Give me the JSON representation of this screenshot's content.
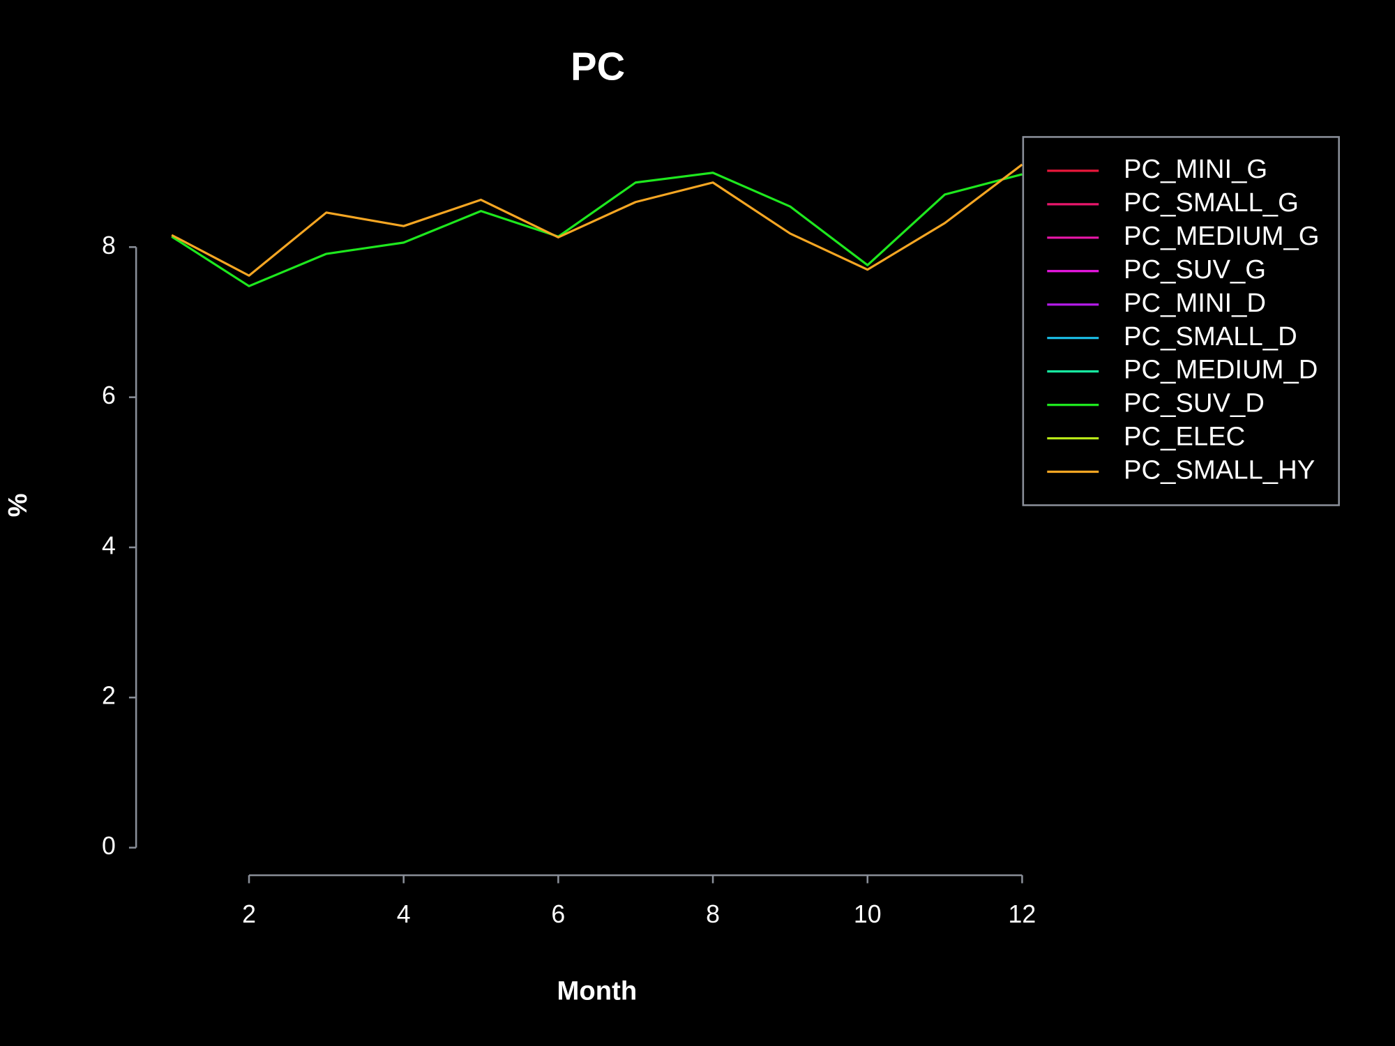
{
  "chart_data": {
    "type": "line",
    "title": "PC",
    "x_label": "Month",
    "y_label": "%",
    "x": [
      1,
      2,
      3,
      4,
      5,
      6,
      7,
      8,
      9,
      10,
      11,
      12
    ],
    "xlim": [
      1,
      12
    ],
    "xticks": [
      2,
      4,
      6,
      8,
      10,
      12
    ],
    "ylim": [
      0,
      9.2
    ],
    "yticks": [
      0,
      2,
      4,
      6,
      8
    ],
    "legend": "topright",
    "series": [
      {
        "name": "PC_MINI_G",
        "color": "#e8173a",
        "values": [
          null,
          null,
          null,
          null,
          null,
          null,
          null,
          null,
          null,
          null,
          null,
          null
        ]
      },
      {
        "name": "PC_SMALL_G",
        "color": "#e8176b",
        "values": [
          null,
          null,
          null,
          null,
          null,
          null,
          null,
          null,
          null,
          null,
          null,
          null
        ]
      },
      {
        "name": "PC_MEDIUM_G",
        "color": "#e817a8",
        "values": [
          null,
          null,
          null,
          null,
          null,
          null,
          null,
          null,
          null,
          null,
          null,
          null
        ]
      },
      {
        "name": "PC_SUV_G",
        "color": "#e817e0",
        "values": [
          null,
          null,
          null,
          null,
          null,
          null,
          null,
          null,
          null,
          null,
          null,
          null
        ]
      },
      {
        "name": "PC_MINI_D",
        "color": "#b31be8",
        "values": [
          null,
          null,
          null,
          null,
          null,
          null,
          null,
          null,
          null,
          null,
          null,
          null
        ]
      },
      {
        "name": "PC_SMALL_D",
        "color": "#1bbfe8",
        "values": [
          null,
          null,
          null,
          null,
          null,
          null,
          null,
          null,
          null,
          null,
          null,
          null
        ]
      },
      {
        "name": "PC_MEDIUM_D",
        "color": "#17e8a0",
        "values": [
          null,
          null,
          null,
          null,
          null,
          null,
          null,
          null,
          null,
          null,
          null,
          null
        ]
      },
      {
        "name": "PC_SUV_D",
        "color": "#1ee81e",
        "values": [
          8.14,
          7.48,
          7.91,
          8.06,
          8.48,
          8.14,
          8.86,
          8.99,
          8.54,
          7.76,
          8.7,
          8.97
        ]
      },
      {
        "name": "PC_ELEC",
        "color": "#b8e817",
        "values": [
          null,
          null,
          null,
          null,
          null,
          null,
          null,
          null,
          null,
          null,
          null,
          null
        ]
      },
      {
        "name": "PC_SMALL_HY",
        "color": "#f5a623",
        "values": [
          8.16,
          7.62,
          8.46,
          8.28,
          8.63,
          8.13,
          8.6,
          8.86,
          8.18,
          7.7,
          8.32,
          9.1
        ]
      }
    ]
  }
}
